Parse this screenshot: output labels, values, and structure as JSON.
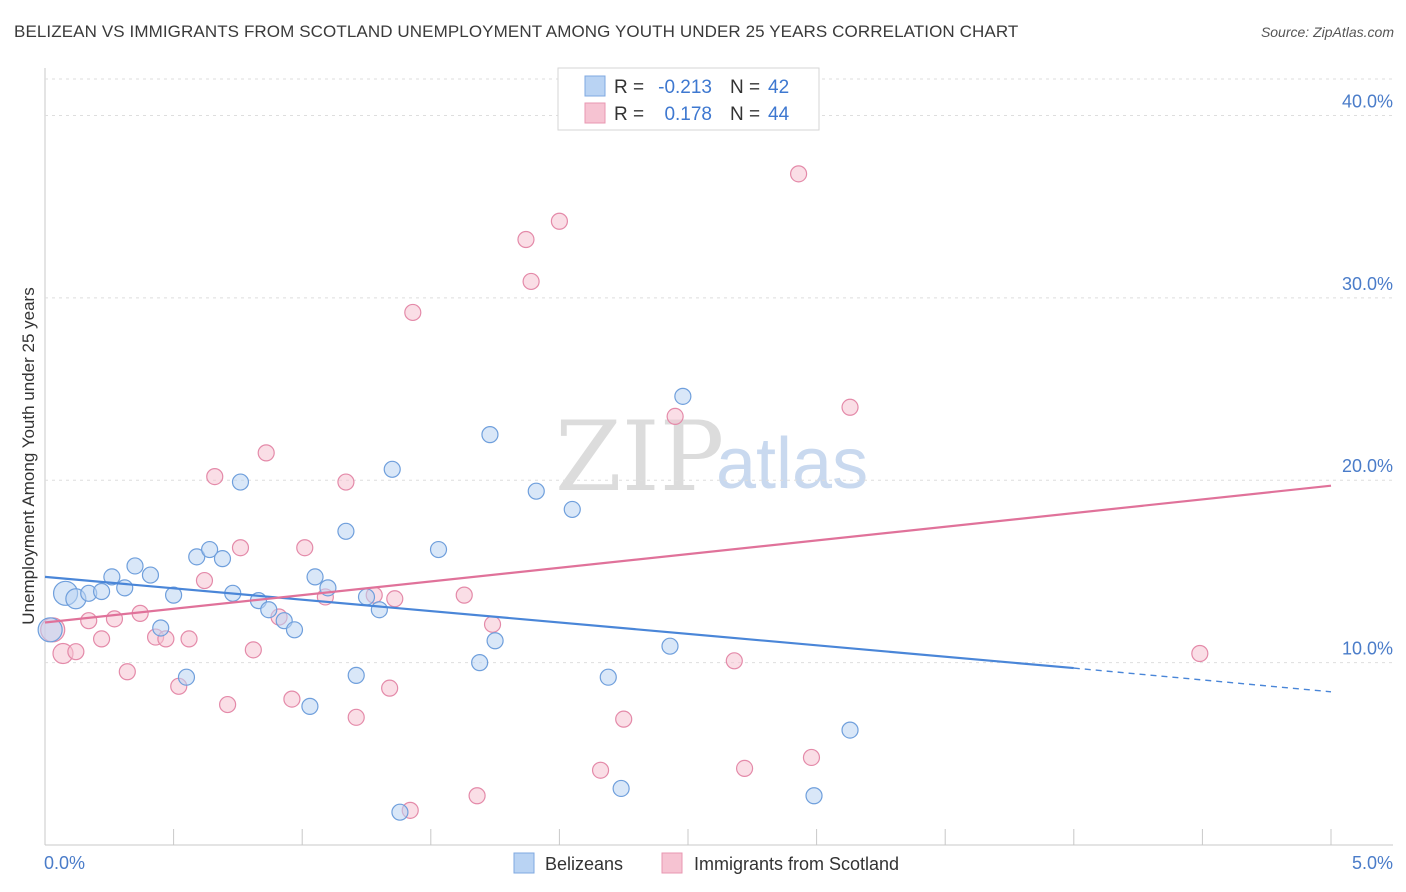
{
  "title": "BELIZEAN VS IMMIGRANTS FROM SCOTLAND UNEMPLOYMENT AMONG YOUTH UNDER 25 YEARS CORRELATION CHART",
  "source": "Source: ZipAtlas.com",
  "watermark": {
    "zip": "ZIP",
    "atlas": "atlas"
  },
  "colors": {
    "blue": "#4a86d8",
    "blue_fill": "#b9d3f3",
    "pink": "#e0729a",
    "pink_fill": "#f6c3d2",
    "axis_text": "#4a7cc9"
  },
  "legend": {
    "r_label": "R =",
    "n_label": "N =",
    "rows": [
      {
        "series": "Belizeans",
        "r": "-0.213",
        "n": "42"
      },
      {
        "series": "Immigrants from Scotland",
        "r": "0.178",
        "n": "44"
      }
    ]
  },
  "chart_data": {
    "type": "scatter",
    "title": "BELIZEAN VS IMMIGRANTS FROM SCOTLAND UNEMPLOYMENT AMONG YOUTH UNDER 25 YEARS CORRELATION CHART",
    "xlabel": "",
    "ylabel": "Unemployment Among Youth under 25 years",
    "xlim": [
      0,
      5
    ],
    "ylim": [
      0,
      42
    ],
    "x_tick_labels": [
      "0.0%",
      "5.0%"
    ],
    "y_ticks": [
      10,
      20,
      30,
      40
    ],
    "y_tick_labels": [
      "10.0%",
      "20.0%",
      "30.0%",
      "40.0%"
    ],
    "legend_bottom": [
      "Belizeans",
      "Immigrants from Scotland"
    ],
    "series": [
      {
        "name": "Belizeans",
        "trend": {
          "x0": 0.0,
          "y0": 14.7,
          "x1": 4.0,
          "y1": 9.7,
          "dash_to_x": 5.0,
          "dash_to_y": 8.4
        },
        "points": [
          [
            0.02,
            11.8,
            "l"
          ],
          [
            0.08,
            13.8,
            "l"
          ],
          [
            0.12,
            13.5,
            "m"
          ],
          [
            0.17,
            13.8
          ],
          [
            0.22,
            13.9
          ],
          [
            0.26,
            14.7
          ],
          [
            0.31,
            14.1
          ],
          [
            0.35,
            15.3
          ],
          [
            0.41,
            14.8
          ],
          [
            0.45,
            11.9
          ],
          [
            0.5,
            13.7
          ],
          [
            0.55,
            9.2
          ],
          [
            0.59,
            15.8
          ],
          [
            0.64,
            16.2
          ],
          [
            0.69,
            15.7
          ],
          [
            0.73,
            13.8
          ],
          [
            0.76,
            19.9
          ],
          [
            0.83,
            13.4
          ],
          [
            0.87,
            12.9
          ],
          [
            0.93,
            12.3
          ],
          [
            0.97,
            11.8
          ],
          [
            1.03,
            7.6
          ],
          [
            1.05,
            14.7
          ],
          [
            1.1,
            14.1
          ],
          [
            1.17,
            17.2
          ],
          [
            1.21,
            9.3
          ],
          [
            1.25,
            13.6
          ],
          [
            1.3,
            12.9
          ],
          [
            1.35,
            20.6
          ],
          [
            1.38,
            1.8
          ],
          [
            1.53,
            16.2
          ],
          [
            1.69,
            10.0
          ],
          [
            1.73,
            22.5
          ],
          [
            1.75,
            11.2
          ],
          [
            1.91,
            19.4
          ],
          [
            2.05,
            18.4
          ],
          [
            2.19,
            9.2
          ],
          [
            2.24,
            3.1
          ],
          [
            2.43,
            10.9
          ],
          [
            2.48,
            24.6
          ],
          [
            2.99,
            2.7
          ],
          [
            3.13,
            6.3
          ]
        ]
      },
      {
        "name": "Immigrants from Scotland",
        "trend": {
          "x0": 0.0,
          "y0": 12.2,
          "x1": 5.0,
          "y1": 19.7
        },
        "points": [
          [
            0.03,
            11.8,
            "l"
          ],
          [
            0.07,
            10.5,
            "m"
          ],
          [
            0.12,
            10.6
          ],
          [
            0.17,
            12.3
          ],
          [
            0.22,
            11.3
          ],
          [
            0.27,
            12.4
          ],
          [
            0.32,
            9.5
          ],
          [
            0.37,
            12.7
          ],
          [
            0.43,
            11.4
          ],
          [
            0.47,
            11.3
          ],
          [
            0.52,
            8.7
          ],
          [
            0.56,
            11.3
          ],
          [
            0.62,
            14.5
          ],
          [
            0.66,
            20.2
          ],
          [
            0.71,
            7.7
          ],
          [
            0.76,
            16.3
          ],
          [
            0.81,
            10.7
          ],
          [
            0.86,
            21.5
          ],
          [
            0.91,
            12.5
          ],
          [
            0.96,
            8.0
          ],
          [
            1.01,
            16.3
          ],
          [
            1.09,
            13.6
          ],
          [
            1.17,
            19.9
          ],
          [
            1.21,
            7.0
          ],
          [
            1.28,
            13.7
          ],
          [
            1.34,
            8.6
          ],
          [
            1.36,
            13.5
          ],
          [
            1.42,
            1.9
          ],
          [
            1.43,
            29.2
          ],
          [
            1.63,
            13.7
          ],
          [
            1.68,
            2.7
          ],
          [
            1.74,
            12.1
          ],
          [
            1.87,
            33.2
          ],
          [
            1.89,
            30.9
          ],
          [
            2.0,
            34.2
          ],
          [
            2.16,
            4.1
          ],
          [
            2.25,
            6.9
          ],
          [
            2.45,
            23.5
          ],
          [
            2.68,
            10.1
          ],
          [
            2.72,
            4.2
          ],
          [
            2.93,
            36.8
          ],
          [
            2.98,
            4.8
          ],
          [
            3.13,
            24.0
          ],
          [
            4.49,
            10.5
          ]
        ]
      }
    ]
  }
}
